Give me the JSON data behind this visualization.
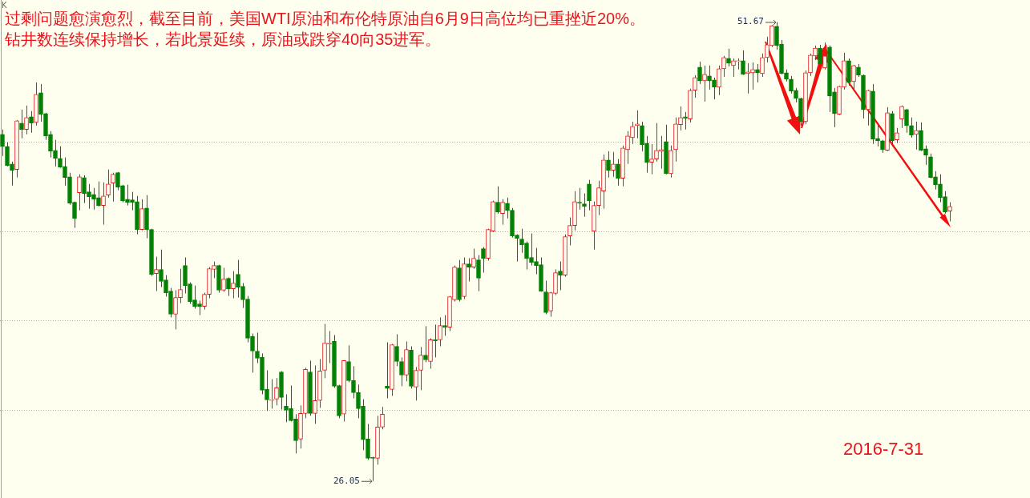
{
  "chart_data": {
    "type": "candlestick",
    "title": "过剩问题愈演愈烈，截至目前，美国WTI原油和布伦特原油自6月9日高位均已重挫近20%。钻井数连续保持增长，若此景延续，原油或跌穿40向35进军。",
    "annotations": [
      "K",
      "2016-7-31",
      "51.67",
      "26.05"
    ],
    "ylim": [
      25.1,
      52.9
    ],
    "yticks": [
      {
        "value": 30,
        "label": null
      },
      {
        "value": 35,
        "label": null
      },
      {
        "value": 40,
        "label": null
      },
      {
        "value": 45,
        "label": null
      }
    ],
    "grid": "y",
    "tick_labels": false,
    "legend": false,
    "categories": [
      null,
      null,
      null,
      null,
      null,
      null,
      null,
      null,
      null,
      null,
      null,
      null,
      null,
      null,
      null,
      null,
      null,
      null,
      null,
      null,
      null,
      null,
      null,
      null,
      null,
      null,
      null,
      null,
      null,
      null,
      null,
      null,
      null,
      null,
      null,
      null,
      null,
      null,
      null,
      null,
      null,
      null,
      null,
      null,
      null,
      null,
      null,
      null,
      null,
      null,
      null,
      null,
      null,
      null,
      null,
      null,
      null,
      null,
      null,
      null,
      null,
      null,
      null,
      null,
      null,
      null,
      null,
      null,
      null,
      null,
      null,
      null,
      null,
      null,
      null,
      null,
      null,
      null,
      null,
      null,
      null,
      null,
      null,
      null,
      null,
      null,
      null,
      null,
      null,
      null,
      null,
      null,
      null,
      null,
      null,
      null,
      null,
      null,
      null,
      null,
      null,
      null,
      null,
      null,
      null,
      null,
      null,
      null,
      null,
      null,
      null,
      null,
      null,
      null,
      null,
      null,
      null,
      null,
      null,
      null,
      null,
      null,
      null,
      null,
      null,
      null,
      null,
      null,
      null,
      null,
      null,
      null,
      null,
      null,
      null,
      null,
      null,
      null,
      null,
      null,
      null,
      null,
      null,
      null,
      null,
      null,
      null,
      null,
      null,
      null,
      null,
      null,
      null,
      null,
      null,
      null,
      null,
      null,
      null,
      null,
      null,
      null,
      null,
      null,
      null,
      null,
      null,
      null,
      null,
      null,
      null,
      null,
      null,
      null,
      null,
      null,
      null,
      null,
      null,
      null,
      null,
      null,
      null,
      null,
      null,
      null,
      null,
      null,
      null,
      null,
      null,
      null,
      null,
      null,
      null,
      null,
      null,
      null
    ],
    "ohlc": [
      [
        45.4,
        45.67,
        44.19,
        44.73
      ],
      [
        44.73,
        44.95,
        43.61,
        43.66
      ],
      [
        43.75,
        43.88,
        42.54,
        43.39
      ],
      [
        43.44,
        46.2,
        42.99,
        46.16
      ],
      [
        46.03,
        46.78,
        45.18,
        45.67
      ],
      [
        45.67,
        47.01,
        45.4,
        46.34
      ],
      [
        46.38,
        46.7,
        45.49,
        46.03
      ],
      [
        46.07,
        48.3,
        45.89,
        47.63
      ],
      [
        47.72,
        48.21,
        46.11,
        46.52
      ],
      [
        46.56,
        46.6,
        45.09,
        45.31
      ],
      [
        45.4,
        45.58,
        44.11,
        44.46
      ],
      [
        44.51,
        45.09,
        43.61,
        44.06
      ],
      [
        44.06,
        44.73,
        43.53,
        43.57
      ],
      [
        43.61,
        44.11,
        42.54,
        42.99
      ],
      [
        43.03,
        43.26,
        41.47,
        41.56
      ],
      [
        41.61,
        41.65,
        40.18,
        40.71
      ],
      [
        42.14,
        43.17,
        41.16,
        43.03
      ],
      [
        42.99,
        43.12,
        41.56,
        42.1
      ],
      [
        42.19,
        42.63,
        41.25,
        41.92
      ],
      [
        42.05,
        42.41,
        41.2,
        41.78
      ],
      [
        41.87,
        42.77,
        41.38,
        41.43
      ],
      [
        41.43,
        42.72,
        40.36,
        41.96
      ],
      [
        42.01,
        43.44,
        41.87,
        42.63
      ],
      [
        42.68,
        43.26,
        41.65,
        43.17
      ],
      [
        43.26,
        43.3,
        42.28,
        42.45
      ],
      [
        42.54,
        42.58,
        41.61,
        41.7
      ],
      [
        41.78,
        42.59,
        41.43,
        41.61
      ],
      [
        41.74,
        42.19,
        41.16,
        41.61
      ],
      [
        41.65,
        41.96,
        39.82,
        40.09
      ],
      [
        40.09,
        41.78,
        40.04,
        41.25
      ],
      [
        41.29,
        42.01,
        39.6,
        40.09
      ],
      [
        40.09,
        40.13,
        37.5,
        37.59
      ],
      [
        37.63,
        38.57,
        36.65,
        37.86
      ],
      [
        37.86,
        38.97,
        36.87,
        37.19
      ],
      [
        37.28,
        37.54,
        36.34,
        36.56
      ],
      [
        36.65,
        36.83,
        35.18,
        35.36
      ],
      [
        35.36,
        36.7,
        34.51,
        36.29
      ],
      [
        36.29,
        37.9,
        35.98,
        36.74
      ],
      [
        38.08,
        38.53,
        36.52,
        36.96
      ],
      [
        37.05,
        37.14,
        35.94,
        36.07
      ],
      [
        36.16,
        36.96,
        35.67,
        35.8
      ],
      [
        35.94,
        36.12,
        35.31,
        35.8
      ],
      [
        35.8,
        36.56,
        35.62,
        36.47
      ],
      [
        36.47,
        37.99,
        36.25,
        37.9
      ],
      [
        37.86,
        38.3,
        37.37,
        38.08
      ],
      [
        38.08,
        38.12,
        36.56,
        36.7
      ],
      [
        36.7,
        37.95,
        36.61,
        37.32
      ],
      [
        37.37,
        37.41,
        36.38,
        36.78
      ],
      [
        36.78,
        37.77,
        36.25,
        37.1
      ],
      [
        37.59,
        38.39,
        36.29,
        36.87
      ],
      [
        36.92,
        37.1,
        35.71,
        36.16
      ],
      [
        36.2,
        36.38,
        33.79,
        34.02
      ],
      [
        34.11,
        34.28,
        32.1,
        33.3
      ],
      [
        33.3,
        34.33,
        32.63,
        32.9
      ],
      [
        32.95,
        33.17,
        30.89,
        31.12
      ],
      [
        31.16,
        32.23,
        29.96,
        30.58
      ],
      [
        30.54,
        31.74,
        30.09,
        30.58
      ],
      [
        30.62,
        31.79,
        30.27,
        31.25
      ],
      [
        32.14,
        32.18,
        30.04,
        30.71
      ],
      [
        30.22,
        30.89,
        29.33,
        30.0
      ],
      [
        30.09,
        31.38,
        29.37,
        29.42
      ],
      [
        29.51,
        29.78,
        27.59,
        28.3
      ],
      [
        28.39,
        30.27,
        27.86,
        29.82
      ],
      [
        29.82,
        32.37,
        29.55,
        32.28
      ],
      [
        32.14,
        32.77,
        29.69,
        29.82
      ],
      [
        29.82,
        32.5,
        29.24,
        30.54
      ],
      [
        30.54,
        32.86,
        30.13,
        32.19
      ],
      [
        32.23,
        34.82,
        31.79,
        33.75
      ],
      [
        33.7,
        34.42,
        32.63,
        33.75
      ],
      [
        33.84,
        34.2,
        31.25,
        31.34
      ],
      [
        31.38,
        31.42,
        29.55,
        29.69
      ],
      [
        29.78,
        32.8,
        29.37,
        32.77
      ],
      [
        32.72,
        33.62,
        31.56,
        31.65
      ],
      [
        31.65,
        32.46,
        30.67,
        30.98
      ],
      [
        30.98,
        31.43,
        29.55,
        30.09
      ],
      [
        30.22,
        30.62,
        27.77,
        28.35
      ],
      [
        28.39,
        29.24,
        27.23,
        27.32
      ],
      [
        27.37,
        27.4,
        26.05,
        27.32
      ],
      [
        27.32,
        29.69,
        26.96,
        29.06
      ],
      [
        29.06,
        30.18,
        28.93,
        29.78
      ],
      [
        31.34,
        33.79,
        30.67,
        31.21
      ],
      [
        31.16,
        33.7,
        30.8,
        33.66
      ],
      [
        33.57,
        34.24,
        32.46,
        32.72
      ],
      [
        32.72,
        32.95,
        31.34,
        31.96
      ],
      [
        31.96,
        33.84,
        31.61,
        33.39
      ],
      [
        33.35,
        33.57,
        31.21,
        31.34
      ],
      [
        31.29,
        32.41,
        30.54,
        32.23
      ],
      [
        32.23,
        33.53,
        31.12,
        33.08
      ],
      [
        33.08,
        34.69,
        32.68,
        32.81
      ],
      [
        32.72,
        34.02,
        32.32,
        33.93
      ],
      [
        33.93,
        34.78,
        32.95,
        33.88
      ],
      [
        33.93,
        35.18,
        33.57,
        34.73
      ],
      [
        34.73,
        35.31,
        34.15,
        34.64
      ],
      [
        34.64,
        36.38,
        34.42,
        36.34
      ],
      [
        36.16,
        38.08,
        36.07,
        37.99
      ],
      [
        37.95,
        38.39,
        36.07,
        36.16
      ],
      [
        36.34,
        38.53,
        36.2,
        38.17
      ],
      [
        38.17,
        38.48,
        37.19,
        37.99
      ],
      [
        37.99,
        39.02,
        37.9,
        38.48
      ],
      [
        38.39,
        38.66,
        36.65,
        37.37
      ],
      [
        39.02,
        39.11,
        37.68,
        38.48
      ],
      [
        38.48,
        40.13,
        38.35,
        40.09
      ],
      [
        40.0,
        41.7,
        39.95,
        41.65
      ],
      [
        41.61,
        42.5,
        40.98,
        41.07
      ],
      [
        40.98,
        41.78,
        40.36,
        41.61
      ],
      [
        41.56,
        41.87,
        40.71,
        41.16
      ],
      [
        41.16,
        41.29,
        39.64,
        39.73
      ],
      [
        39.78,
        39.82,
        38.3,
        39.6
      ],
      [
        39.55,
        40.13,
        38.79,
        39.24
      ],
      [
        39.33,
        39.42,
        37.86,
        38.48
      ],
      [
        38.53,
        39.87,
        38.08,
        38.26
      ],
      [
        38.3,
        39.06,
        37.59,
        38.08
      ],
      [
        38.12,
        38.53,
        36.61,
        36.65
      ],
      [
        36.61,
        37.23,
        35.36,
        35.45
      ],
      [
        35.54,
        36.61,
        35.22,
        36.56
      ],
      [
        36.52,
        37.86,
        36.43,
        37.68
      ],
      [
        37.77,
        38.3,
        36.7,
        37.54
      ],
      [
        37.54,
        39.82,
        37.45,
        39.69
      ],
      [
        39.73,
        40.76,
        39.2,
        40.31
      ],
      [
        40.31,
        42.23,
        40.04,
        41.65
      ],
      [
        41.61,
        42.41,
        41.2,
        41.56
      ],
      [
        41.52,
        42.1,
        40.8,
        41.38
      ],
      [
        42.63,
        42.86,
        41.16,
        41.7
      ],
      [
        40.0,
        41.65,
        38.97,
        41.43
      ],
      [
        41.43,
        42.81,
        40.89,
        42.41
      ],
      [
        42.23,
        44.28,
        41.25,
        43.97
      ],
      [
        43.97,
        44.46,
        42.99,
        43.39
      ],
      [
        43.39,
        44.42,
        43.03,
        43.75
      ],
      [
        43.75,
        44.02,
        42.54,
        42.95
      ],
      [
        42.95,
        44.78,
        42.5,
        44.64
      ],
      [
        44.55,
        45.58,
        43.75,
        45.31
      ],
      [
        45.22,
        46.11,
        44.86,
        45.85
      ],
      [
        45.89,
        46.74,
        45.18,
        45.98
      ],
      [
        45.89,
        46.11,
        44.46,
        44.82
      ],
      [
        44.91,
        45.31,
        43.26,
        43.84
      ],
      [
        43.84,
        44.86,
        43.17,
        44.02
      ],
      [
        44.02,
        46.03,
        43.88,
        44.51
      ],
      [
        44.46,
        45.31,
        43.48,
        44.55
      ],
      [
        45.0,
        45.94,
        43.17,
        43.21
      ],
      [
        43.21,
        44.78,
        42.99,
        44.51
      ],
      [
        44.55,
        46.34,
        43.88,
        45.98
      ],
      [
        45.94,
        46.96,
        45.62,
        46.34
      ],
      [
        46.38,
        46.65,
        45.67,
        46.29
      ],
      [
        46.25,
        47.95,
        46.07,
        47.86
      ],
      [
        47.86,
        48.7,
        47.45,
        48.57
      ],
      [
        49.15,
        49.46,
        48.21,
        48.39
      ],
      [
        48.39,
        49.24,
        47.23,
        48.75
      ],
      [
        48.66,
        49.24,
        47.9,
        48.39
      ],
      [
        48.44,
        48.57,
        47.36,
        48.03
      ],
      [
        48.03,
        49.24,
        47.59,
        49.06
      ],
      [
        49.06,
        49.78,
        48.61,
        49.69
      ],
      [
        49.64,
        50.18,
        49.19,
        49.37
      ],
      [
        49.24,
        49.64,
        48.61,
        49.51
      ],
      [
        49.46,
        49.64,
        49.02,
        49.51
      ],
      [
        49.51,
        50.09,
        48.72,
        48.75
      ],
      [
        48.79,
        49.37,
        47.68,
        48.88
      ],
      [
        48.84,
        49.42,
        47.9,
        49.02
      ],
      [
        49.02,
        49.33,
        48.3,
        48.84
      ],
      [
        48.79,
        49.91,
        48.61,
        49.69
      ],
      [
        49.69,
        50.85,
        49.42,
        50.4
      ],
      [
        50.36,
        51.5,
        50.27,
        51.47
      ],
      [
        51.43,
        51.67,
        50.13,
        50.36
      ],
      [
        50.44,
        50.67,
        48.75,
        48.79
      ],
      [
        48.84,
        49.02,
        48.35,
        48.48
      ],
      [
        48.48,
        48.66,
        47.68,
        47.81
      ],
      [
        47.86,
        47.99,
        47.19,
        47.41
      ],
      [
        47.41,
        47.45,
        45.89,
        46.11
      ],
      [
        46.11,
        48.97,
        45.98,
        48.84
      ],
      [
        48.84,
        49.91,
        48.66,
        49.82
      ],
      [
        49.78,
        50.36,
        49.55,
        50.22
      ],
      [
        50.22,
        50.4,
        49.11,
        49.33
      ],
      [
        49.11,
        50.53,
        49.02,
        49.78
      ],
      [
        50.27,
        50.36,
        46.65,
        47.54
      ],
      [
        47.77,
        47.99,
        45.8,
        46.56
      ],
      [
        46.52,
        48.12,
        46.48,
        48.08
      ],
      [
        48.03,
        49.95,
        47.9,
        49.51
      ],
      [
        49.51,
        49.64,
        48.12,
        48.3
      ],
      [
        48.35,
        49.28,
        47.86,
        49.24
      ],
      [
        49.15,
        49.33,
        48.61,
        48.7
      ],
      [
        48.7,
        48.74,
        46.29,
        46.78
      ],
      [
        46.78,
        47.9,
        45.89,
        47.86
      ],
      [
        47.81,
        48.21,
        44.86,
        45.13
      ],
      [
        45.18,
        45.89,
        44.73,
        45.04
      ],
      [
        45.04,
        45.09,
        44.37,
        44.55
      ],
      [
        44.51,
        46.92,
        44.47,
        46.61
      ],
      [
        46.56,
        46.7,
        44.73,
        45.04
      ],
      [
        45.09,
        45.76,
        44.91,
        45.49
      ],
      [
        46.25,
        47.01,
        45.76,
        46.96
      ],
      [
        46.78,
        46.83,
        45.49,
        45.89
      ],
      [
        45.89,
        46.34,
        45.22,
        45.36
      ],
      [
        45.4,
        46.11,
        44.55,
        45.62
      ],
      [
        45.62,
        46.07,
        44.47,
        44.51
      ],
      [
        44.6,
        44.78,
        43.7,
        44.24
      ],
      [
        44.15,
        44.33,
        42.95,
        42.99
      ],
      [
        43.03,
        43.35,
        42.32,
        42.59
      ],
      [
        42.63,
        43.17,
        41.61,
        41.87
      ],
      [
        41.92,
        42.23,
        40.98,
        41.07
      ],
      [
        41.11,
        41.61,
        40.54,
        41.38
      ]
    ]
  }
}
